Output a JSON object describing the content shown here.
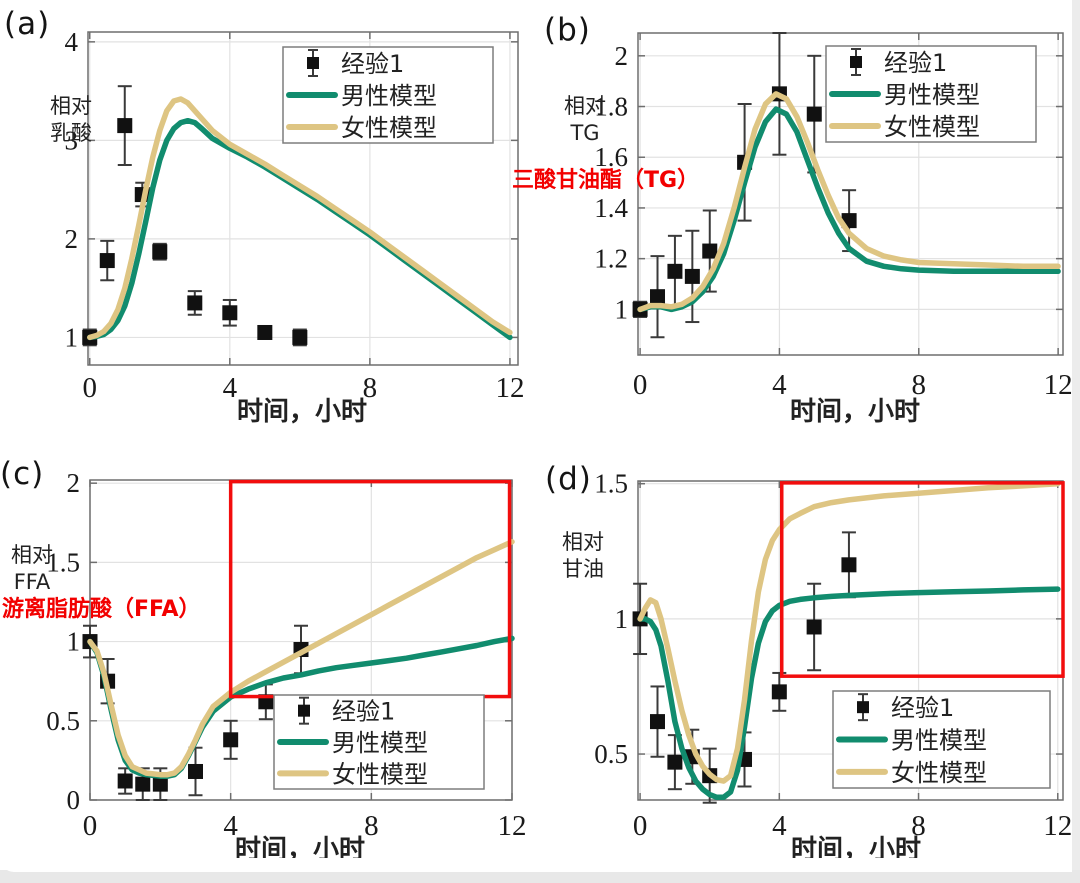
{
  "colors": {
    "male": "#118c6e",
    "female": "#dec583",
    "experiment": "#111111",
    "error_bar": "#3a3a3a",
    "red_highlight": "#f20d0d",
    "red_annotation": "#f20000",
    "grid": "#e2e2e2",
    "axis": "#6e6e6e",
    "tick_text": "#1a1a1a",
    "label_text": "#222222"
  },
  "chart_data": [
    {
      "type": "line",
      "letter": "(a)",
      "ylabel_lines": [
        "相对",
        "乳酸"
      ],
      "xlabel": "时间，小时",
      "xlim": [
        -0.05,
        12.23
      ],
      "ylim": [
        0.72,
        4.1
      ],
      "xticks": [
        0,
        4,
        8,
        12
      ],
      "yticks": [
        1,
        2,
        3,
        4
      ],
      "grid": true,
      "legend_position": "top-right",
      "points": {
        "name": "经验1",
        "t": [
          0,
          0.5,
          1,
          1.5,
          2,
          3,
          4,
          5,
          6
        ],
        "y": [
          1,
          1.78,
          3.15,
          2.45,
          1.87,
          1.35,
          1.25,
          1.05,
          1
        ],
        "err": [
          0.08,
          0.2,
          0.4,
          0.12,
          0.08,
          0.12,
          0.13,
          0.05,
          0.08
        ]
      },
      "series": [
        {
          "name": "男性模型",
          "color_key": "male",
          "x": [
            0,
            0.2,
            0.4,
            0.6,
            0.8,
            1,
            1.2,
            1.4,
            1.6,
            1.8,
            2,
            2.2,
            2.4,
            2.6,
            2.8,
            3,
            3.2,
            3.5,
            4,
            4.5,
            5,
            5.5,
            6,
            6.5,
            7,
            7.5,
            8,
            8.5,
            9,
            9.5,
            10,
            10.5,
            11,
            11.5,
            12
          ],
          "y": [
            1,
            1.01,
            1.03,
            1.08,
            1.17,
            1.32,
            1.55,
            1.85,
            2.18,
            2.52,
            2.8,
            3,
            3.12,
            3.18,
            3.2,
            3.18,
            3.12,
            3.02,
            2.92,
            2.83,
            2.73,
            2.62,
            2.51,
            2.4,
            2.28,
            2.16,
            2.04,
            1.91,
            1.78,
            1.65,
            1.52,
            1.39,
            1.26,
            1.13,
            1.0
          ]
        },
        {
          "name": "女性模型",
          "color_key": "female",
          "x": [
            0,
            0.2,
            0.4,
            0.6,
            0.8,
            1,
            1.2,
            1.4,
            1.6,
            1.8,
            2,
            2.2,
            2.4,
            2.6,
            2.8,
            3,
            3.2,
            3.5,
            4,
            4.5,
            5,
            5.5,
            6,
            6.5,
            7,
            7.5,
            8,
            8.5,
            9,
            9.5,
            10,
            10.5,
            11,
            11.5,
            12
          ],
          "y": [
            1,
            1.02,
            1.06,
            1.14,
            1.28,
            1.5,
            1.8,
            2.14,
            2.5,
            2.83,
            3.1,
            3.3,
            3.4,
            3.42,
            3.38,
            3.3,
            3.22,
            3.1,
            2.96,
            2.86,
            2.76,
            2.65,
            2.54,
            2.43,
            2.31,
            2.19,
            2.07,
            1.94,
            1.81,
            1.68,
            1.55,
            1.42,
            1.29,
            1.16,
            1.05
          ]
        }
      ]
    },
    {
      "type": "line",
      "letter": "(b)",
      "ylabel_lines": [
        "相对",
        "TG"
      ],
      "xlabel": "时间，小时",
      "xlim": [
        -0.06,
        12.14
      ],
      "ylim": [
        0.82,
        2.09
      ],
      "xticks": [
        0,
        4,
        8,
        12
      ],
      "yticks": [
        1,
        1.2,
        1.4,
        1.6,
        1.8,
        2
      ],
      "grid": true,
      "legend_position": "top-right",
      "annotation": {
        "text": "三酸甘油酯（TG）"
      },
      "points": {
        "name": "经验1",
        "t": [
          0,
          0.5,
          1,
          1.5,
          2,
          3,
          4,
          5,
          6
        ],
        "y": [
          1,
          1.05,
          1.15,
          1.13,
          1.23,
          1.58,
          1.85,
          1.77,
          1.35
        ],
        "err": [
          0.03,
          0.16,
          0.14,
          0.18,
          0.16,
          0.23,
          0.24,
          0.23,
          0.12
        ]
      },
      "series": [
        {
          "name": "男性模型",
          "color_key": "male",
          "x": [
            0,
            0.3,
            0.6,
            0.9,
            1.2,
            1.5,
            1.8,
            2.1,
            2.4,
            2.7,
            3,
            3.3,
            3.6,
            3.9,
            4.2,
            4.5,
            4.8,
            5.1,
            5.4,
            5.7,
            6,
            6.5,
            7,
            7.5,
            8,
            9,
            10,
            11,
            12
          ],
          "y": [
            1,
            1.01,
            1.01,
            1,
            1.01,
            1.03,
            1.07,
            1.13,
            1.22,
            1.35,
            1.5,
            1.64,
            1.74,
            1.79,
            1.77,
            1.7,
            1.59,
            1.48,
            1.38,
            1.3,
            1.24,
            1.19,
            1.17,
            1.16,
            1.155,
            1.15,
            1.15,
            1.15,
            1.15
          ]
        },
        {
          "name": "女性模型",
          "color_key": "female",
          "x": [
            0,
            0.3,
            0.6,
            0.9,
            1.2,
            1.5,
            1.8,
            2.1,
            2.4,
            2.7,
            3,
            3.3,
            3.6,
            3.9,
            4.2,
            4.5,
            4.8,
            5.1,
            5.4,
            5.7,
            6,
            6.5,
            7,
            7.5,
            8,
            9,
            10,
            11,
            12
          ],
          "y": [
            1,
            1.015,
            1.015,
            1.01,
            1.02,
            1.045,
            1.09,
            1.16,
            1.26,
            1.4,
            1.56,
            1.71,
            1.81,
            1.85,
            1.83,
            1.76,
            1.66,
            1.55,
            1.45,
            1.36,
            1.3,
            1.24,
            1.21,
            1.195,
            1.185,
            1.18,
            1.175,
            1.17,
            1.17
          ]
        }
      ]
    },
    {
      "type": "line",
      "letter": "(c)",
      "ylabel_lines": [
        "相对",
        "FFA"
      ],
      "xlabel": "时间，小时",
      "xlim": [
        0,
        12
      ],
      "ylim": [
        0,
        2.02
      ],
      "xticks": [
        0,
        4,
        8,
        12
      ],
      "yticks": [
        0,
        0.5,
        1,
        1.5,
        2
      ],
      "grid": true,
      "legend_position": "bottom-right",
      "annotation": {
        "text": "游离脂肪酸（FFA）"
      },
      "red_box": {
        "t1": 4.0,
        "t2": 11.93,
        "y1": 0.653,
        "y2": 2.01
      },
      "points": {
        "name": "经验1",
        "t": [
          0,
          0.5,
          1,
          1.5,
          2,
          3,
          4,
          5,
          6
        ],
        "y": [
          1,
          0.75,
          0.12,
          0.1,
          0.1,
          0.18,
          0.38,
          0.62,
          0.95
        ],
        "err": [
          0.1,
          0.14,
          0.08,
          0.1,
          0.1,
          0.15,
          0.12,
          0.11,
          0.15
        ]
      },
      "series": [
        {
          "name": "男性模型",
          "color_key": "male",
          "x": [
            0,
            0.2,
            0.4,
            0.6,
            0.8,
            1,
            1.2,
            1.4,
            1.6,
            1.8,
            2,
            2.2,
            2.4,
            2.6,
            2.8,
            3,
            3.2,
            3.5,
            4,
            4.5,
            5,
            5.5,
            6,
            6.5,
            7,
            7.5,
            8,
            8.5,
            9,
            9.5,
            10,
            10.5,
            11,
            11.5,
            12
          ],
          "y": [
            1,
            0.93,
            0.78,
            0.57,
            0.38,
            0.25,
            0.19,
            0.17,
            0.16,
            0.155,
            0.15,
            0.15,
            0.16,
            0.2,
            0.28,
            0.37,
            0.46,
            0.56,
            0.65,
            0.7,
            0.74,
            0.77,
            0.79,
            0.815,
            0.835,
            0.85,
            0.865,
            0.88,
            0.895,
            0.915,
            0.935,
            0.955,
            0.975,
            1,
            1.02
          ]
        },
        {
          "name": "女性模型",
          "color_key": "female",
          "x": [
            0,
            0.2,
            0.4,
            0.6,
            0.8,
            1,
            1.2,
            1.4,
            1.6,
            1.8,
            2,
            2.2,
            2.4,
            2.6,
            2.8,
            3,
            3.2,
            3.5,
            4,
            4.5,
            5,
            5.5,
            6,
            6.5,
            7,
            7.5,
            8,
            8.5,
            9,
            9.5,
            10,
            10.5,
            11,
            11.5,
            12
          ],
          "y": [
            1,
            0.94,
            0.8,
            0.6,
            0.41,
            0.28,
            0.21,
            0.19,
            0.17,
            0.165,
            0.16,
            0.16,
            0.17,
            0.21,
            0.29,
            0.38,
            0.48,
            0.59,
            0.68,
            0.75,
            0.81,
            0.87,
            0.93,
            0.99,
            1.05,
            1.11,
            1.17,
            1.23,
            1.29,
            1.35,
            1.41,
            1.47,
            1.53,
            1.58,
            1.63
          ]
        }
      ]
    },
    {
      "type": "line",
      "letter": "(d)",
      "ylabel_lines": [
        "相对",
        "甘油"
      ],
      "xlabel": "时间，小时",
      "xlim": [
        -0.06,
        12.15
      ],
      "ylim": [
        0.33,
        1.51
      ],
      "xticks": [
        0,
        4,
        8,
        12
      ],
      "yticks": [
        0.5,
        1,
        1.5
      ],
      "grid": true,
      "legend_position": "bottom-right",
      "red_box": {
        "t1": 4.07,
        "t2": 12.15,
        "y1": 0.788,
        "y2": 1.503
      },
      "points": {
        "name": "经验1",
        "t": [
          0,
          0.5,
          1,
          1.5,
          2,
          3,
          4,
          5,
          6
        ],
        "y": [
          1,
          0.62,
          0.47,
          0.49,
          0.42,
          0.48,
          0.73,
          0.97,
          1.2
        ],
        "err": [
          0.13,
          0.13,
          0.1,
          0.1,
          0.1,
          0.1,
          0.07,
          0.16,
          0.12
        ]
      },
      "series": [
        {
          "name": "男性模型",
          "color_key": "male",
          "x": [
            0,
            0.15,
            0.3,
            0.45,
            0.6,
            0.8,
            1,
            1.2,
            1.4,
            1.6,
            1.8,
            2,
            2.2,
            2.4,
            2.6,
            2.8,
            3,
            3.2,
            3.4,
            3.6,
            3.8,
            4,
            4.3,
            4.6,
            5,
            5.5,
            6,
            7,
            8,
            9,
            10,
            11,
            12
          ],
          "y": [
            1,
            1,
            0.99,
            0.96,
            0.9,
            0.77,
            0.62,
            0.52,
            0.45,
            0.4,
            0.37,
            0.35,
            0.34,
            0.34,
            0.36,
            0.44,
            0.6,
            0.78,
            0.91,
            0.99,
            1.03,
            1.05,
            1.065,
            1.072,
            1.078,
            1.083,
            1.087,
            1.093,
            1.097,
            1.1,
            1.103,
            1.107,
            1.11
          ]
        },
        {
          "name": "女性模型",
          "color_key": "female",
          "x": [
            0,
            0.15,
            0.3,
            0.45,
            0.6,
            0.8,
            1,
            1.2,
            1.4,
            1.6,
            1.8,
            2,
            2.2,
            2.4,
            2.6,
            2.8,
            3,
            3.2,
            3.4,
            3.6,
            3.8,
            4,
            4.3,
            4.6,
            5,
            5.5,
            6,
            7,
            8,
            9,
            10,
            11,
            12
          ],
          "y": [
            1,
            1.04,
            1.07,
            1.06,
            1,
            0.89,
            0.77,
            0.66,
            0.57,
            0.5,
            0.455,
            0.425,
            0.405,
            0.4,
            0.42,
            0.52,
            0.7,
            0.92,
            1.1,
            1.22,
            1.29,
            1.33,
            1.37,
            1.39,
            1.415,
            1.43,
            1.44,
            1.455,
            1.465,
            1.475,
            1.485,
            1.492,
            1.5
          ]
        }
      ]
    }
  ]
}
